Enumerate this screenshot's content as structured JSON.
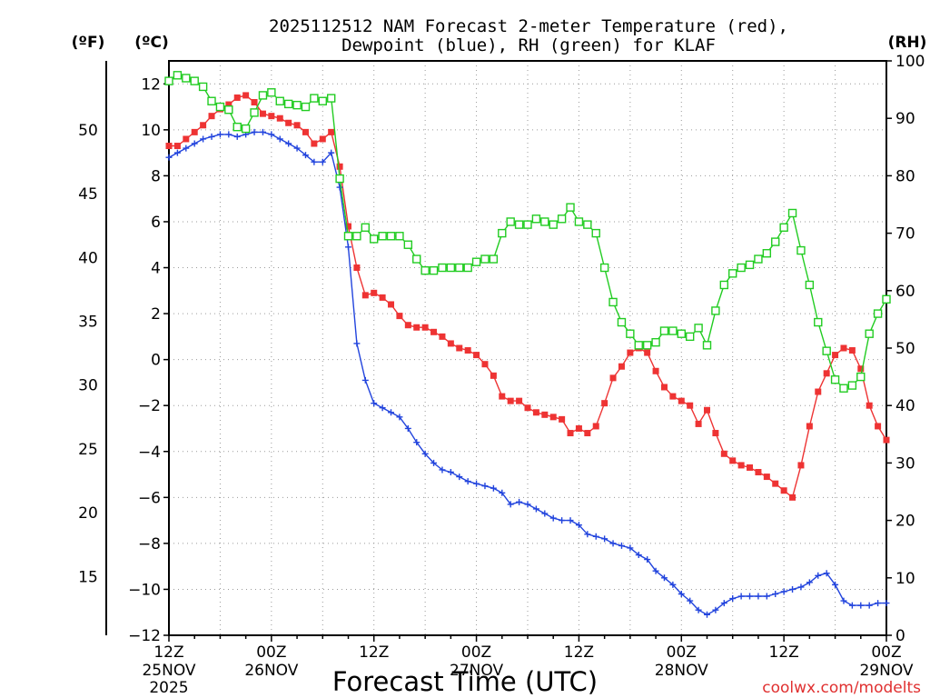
{
  "chart_data": {
    "type": "line",
    "title_line1": "2025112512 NAM Forecast 2-meter Temperature (red),",
    "title_line2": "Dewpoint (blue), RH (green) for KLAF",
    "unit_f": "(ºF)",
    "unit_c": "(ºC)",
    "unit_rh": "(RH)",
    "xlabel": "Forecast Time (UTC)",
    "credit": "coolwx.com/modelts",
    "xlim": [
      0,
      84
    ],
    "ylim_c": [
      -12,
      13
    ],
    "ylim_rh": [
      0,
      100
    ],
    "yticks_c": [
      12,
      10,
      8,
      6,
      4,
      2,
      0,
      -2,
      -4,
      -6,
      -8,
      -10,
      -12
    ],
    "yticks_c_labels": [
      "12",
      "10",
      "8",
      "6",
      "4",
      "2",
      "0",
      "−2",
      "−4",
      "−6",
      "−8",
      "−10",
      "−12"
    ],
    "yticks_f": [
      50,
      45,
      40,
      35,
      30,
      25,
      20,
      15
    ],
    "yticks_rh": [
      100,
      90,
      80,
      70,
      60,
      50,
      40,
      30,
      20,
      10,
      0
    ],
    "xticks": [
      {
        "h": 0,
        "line1": "12Z",
        "line2": "25NOV",
        "line3": "2025"
      },
      {
        "h": 12,
        "line1": "00Z",
        "line2": "26NOV",
        "line3": ""
      },
      {
        "h": 24,
        "line1": "12Z",
        "line2": "",
        "line3": ""
      },
      {
        "h": 36,
        "line1": "00Z",
        "line2": "27NOV",
        "line3": ""
      },
      {
        "h": 48,
        "line1": "12Z",
        "line2": "",
        "line3": ""
      },
      {
        "h": 60,
        "line1": "00Z",
        "line2": "28NOV",
        "line3": ""
      },
      {
        "h": 72,
        "line1": "12Z",
        "line2": "",
        "line3": ""
      },
      {
        "h": 84,
        "line1": "00Z",
        "line2": "29NOV",
        "line3": ""
      }
    ],
    "series": [
      {
        "name": "Temperature",
        "color": "#ee3333",
        "marker": "filled-square",
        "axis": "C",
        "values": [
          9.3,
          9.3,
          9.6,
          9.9,
          10.2,
          10.6,
          10.9,
          11.1,
          11.4,
          11.5,
          11.2,
          10.7,
          10.6,
          10.5,
          10.3,
          10.2,
          9.9,
          9.4,
          9.6,
          9.9,
          8.4,
          5.8,
          4.0,
          2.8,
          2.9,
          2.7,
          2.4,
          1.9,
          1.5,
          1.4,
          1.4,
          1.2,
          1.0,
          0.7,
          0.5,
          0.4,
          0.2,
          -0.2,
          -0.7,
          -1.6,
          -1.8,
          -1.8,
          -2.1,
          -2.3,
          -2.4,
          -2.5,
          -2.6,
          -3.2,
          -3.0,
          -3.2,
          -2.9,
          -1.9,
          -0.8,
          -0.3,
          0.3,
          0.5,
          0.3,
          -0.5,
          -1.2,
          -1.6,
          -1.8,
          -2.0,
          -2.8,
          -2.2,
          -3.2,
          -4.1,
          -4.4,
          -4.6,
          -4.7,
          -4.9,
          -5.1,
          -5.4,
          -5.7,
          -6.0,
          -4.6,
          -2.9,
          -1.4,
          -0.6,
          0.2,
          0.5,
          0.4,
          -0.4,
          -2.0,
          -2.9,
          -3.5
        ]
      },
      {
        "name": "Dewpoint",
        "color": "#2244dd",
        "marker": "plus",
        "axis": "C",
        "values": [
          8.8,
          9.0,
          9.2,
          9.4,
          9.6,
          9.7,
          9.8,
          9.8,
          9.7,
          9.8,
          9.9,
          9.9,
          9.8,
          9.6,
          9.4,
          9.2,
          8.9,
          8.6,
          8.6,
          9.0,
          7.5,
          4.9,
          0.7,
          -0.9,
          -1.9,
          -2.1,
          -2.3,
          -2.5,
          -3.0,
          -3.6,
          -4.1,
          -4.5,
          -4.8,
          -4.9,
          -5.1,
          -5.3,
          -5.4,
          -5.5,
          -5.6,
          -5.8,
          -6.3,
          -6.2,
          -6.3,
          -6.5,
          -6.7,
          -6.9,
          -7.0,
          -7.0,
          -7.2,
          -7.6,
          -7.7,
          -7.8,
          -8.0,
          -8.1,
          -8.2,
          -8.5,
          -8.7,
          -9.2,
          -9.5,
          -9.8,
          -10.2,
          -10.5,
          -10.9,
          -11.1,
          -10.9,
          -10.6,
          -10.4,
          -10.3,
          -10.3,
          -10.3,
          -10.3,
          -10.2,
          -10.1,
          -10.0,
          -9.9,
          -9.7,
          -9.4,
          -9.3,
          -9.8,
          -10.5,
          -10.7,
          -10.7,
          -10.7,
          -10.6,
          -10.6
        ]
      },
      {
        "name": "RH",
        "color": "#22cc22",
        "marker": "open-square",
        "axis": "RH",
        "values": [
          96.5,
          97.5,
          97,
          96.5,
          95.5,
          93,
          92,
          91.5,
          88.5,
          88.2,
          91,
          94,
          94.5,
          93,
          92.5,
          92.3,
          92,
          93.5,
          93,
          93.5,
          79.5,
          69.5,
          69.5,
          71,
          69,
          69.5,
          69.5,
          69.5,
          68,
          65.5,
          63.5,
          63.5,
          64,
          64,
          64,
          64,
          65,
          65.5,
          65.5,
          70,
          72,
          71.5,
          71.5,
          72.5,
          72,
          71.5,
          72.5,
          74.5,
          72,
          71.5,
          70,
          64,
          58,
          54.5,
          52.5,
          50.5,
          50.5,
          51,
          53,
          53,
          52.5,
          52,
          53.5,
          50.5,
          56.5,
          61,
          63,
          64,
          64.5,
          65.5,
          66.5,
          68.5,
          71,
          73.5,
          67,
          61,
          54.5,
          49.5,
          44.5,
          43,
          43.5,
          45,
          52.5,
          56,
          58.5
        ]
      }
    ]
  }
}
